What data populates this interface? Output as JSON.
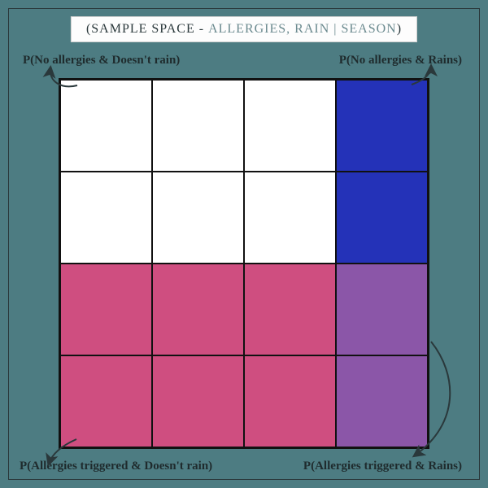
{
  "title": {
    "prefix": "(SAMPLE SPACE - ",
    "vars": "ALLERGIES, RAIN | SEASON",
    "suffix": ")",
    "bg": "#fdfdfd",
    "text_color": "#2a383b",
    "sub_color": "#6b8a8f",
    "fontsize": 16
  },
  "background_color": "#4d7c82",
  "frame_border_color": "#2a383b",
  "grid": {
    "rows": 4,
    "cols": 4,
    "border_color": "#111111",
    "cell_colors": [
      [
        "#ffffff",
        "#ffffff",
        "#ffffff",
        "#2432b8"
      ],
      [
        "#ffffff",
        "#ffffff",
        "#ffffff",
        "#2432b8"
      ],
      [
        "#cf4e80",
        "#cf4e80",
        "#cf4e80",
        "#8b56a8"
      ],
      [
        "#cf4e80",
        "#cf4e80",
        "#cf4e80",
        "#8b56a8"
      ]
    ]
  },
  "labels": {
    "top_left": "P(No allergies & Doesn't rain)",
    "top_right": "P(No allergies & Rains)",
    "bottom_left": "P(Allergies triggered & Doesn't rain)",
    "bottom_right": "P(Allergies triggered & Rains)",
    "color": "#1f2b2d",
    "fontsize": 15
  },
  "arrows": {
    "color": "#2a383b",
    "width": 2,
    "paths": [
      "M 95 105 C 75 110, 60 100, 62 84",
      "M 506 104 C 520 99, 530 92, 530 82",
      "M 94 540 C 76 548, 64 558, 60 570",
      "M 530 420 C 562 460, 566 520, 510 560"
    ]
  }
}
